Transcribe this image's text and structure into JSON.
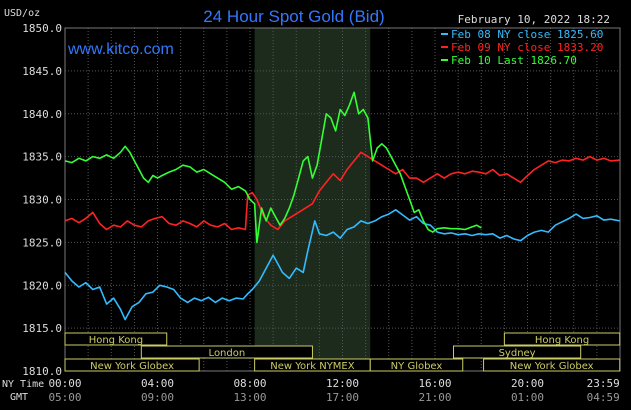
{
  "header": {
    "y_unit": "USD/oz",
    "title": "24 Hour Spot Gold (Bid)",
    "timestamp": "February 10, 2022 18:22",
    "site": "www.kitco.com"
  },
  "legend": [
    {
      "label": "Feb 08 NY close 1825.60",
      "color": "#33bbff"
    },
    {
      "label": "Feb 09 NY close 1833.20",
      "color": "#ff2222"
    },
    {
      "label": "Feb 10 Last 1826.70",
      "color": "#33ff33"
    }
  ],
  "axis_rows": {
    "ny_time_label": "NY Time",
    "gmt_label": "GMT",
    "ny_ticks": [
      "00:00",
      "04:00",
      "08:00",
      "12:00",
      "16:00",
      "20:00",
      "23:59"
    ],
    "gmt_ticks": [
      "05:00",
      "09:00",
      "13:00",
      "17:00",
      "21:00",
      "01:00",
      "04:59"
    ]
  },
  "sessions": {
    "row1": [
      {
        "label": "Hong Kong",
        "start": 0,
        "end": 4.4
      },
      {
        "label": "Hong Kong",
        "start": 19,
        "end": 23.99
      }
    ],
    "row2": [
      {
        "label": "London",
        "start": 3.3,
        "end": 10.7
      },
      {
        "label": "Sydney",
        "start": 16.8,
        "end": 22.3
      }
    ],
    "row3": [
      {
        "label": "New York Globex",
        "start": 0,
        "end": 5.8
      },
      {
        "label": "New York NYMEX",
        "start": 8.2,
        "end": 13.2
      },
      {
        "label": "NY Globex",
        "start": 13.2,
        "end": 17.2
      },
      {
        "label": "New York Globex",
        "start": 18.1,
        "end": 23.99
      }
    ]
  },
  "colors": {
    "background": "#000000",
    "grid": "#555555",
    "axis_text": "#dddddd",
    "title": "#3377ff",
    "nymex_band": "#1d2b1d",
    "session_border": "#cccc66"
  },
  "chart_data": {
    "type": "line",
    "xlim": [
      0,
      24
    ],
    "ylim": [
      1810,
      1850
    ],
    "y_ticks": [
      "1850.0",
      "1845.0",
      "1840.0",
      "1835.0",
      "1830.0",
      "1825.0",
      "1820.0",
      "1815.0",
      "1810.0"
    ],
    "grid": true,
    "legend_position": "top-right",
    "series": [
      {
        "name": "Feb 08 NY close 1825.60",
        "color": "#33bbff",
        "points": [
          [
            0,
            1821.5
          ],
          [
            0.3,
            1820.5
          ],
          [
            0.6,
            1819.8
          ],
          [
            0.9,
            1820.3
          ],
          [
            1.2,
            1819.5
          ],
          [
            1.5,
            1819.8
          ],
          [
            1.8,
            1817.8
          ],
          [
            2.1,
            1818.5
          ],
          [
            2.4,
            1817.2
          ],
          [
            2.6,
            1816.0
          ],
          [
            2.9,
            1817.5
          ],
          [
            3.2,
            1818.0
          ],
          [
            3.5,
            1819.0
          ],
          [
            3.8,
            1819.2
          ],
          [
            4.1,
            1820.0
          ],
          [
            4.4,
            1819.8
          ],
          [
            4.7,
            1819.5
          ],
          [
            5.0,
            1818.5
          ],
          [
            5.3,
            1818.0
          ],
          [
            5.6,
            1818.5
          ],
          [
            5.9,
            1818.2
          ],
          [
            6.2,
            1818.6
          ],
          [
            6.5,
            1818.0
          ],
          [
            6.8,
            1818.5
          ],
          [
            7.1,
            1818.2
          ],
          [
            7.4,
            1818.5
          ],
          [
            7.7,
            1818.4
          ],
          [
            7.9,
            1819.0
          ],
          [
            8.1,
            1819.5
          ],
          [
            8.4,
            1820.5
          ],
          [
            8.7,
            1822.0
          ],
          [
            9.0,
            1823.5
          ],
          [
            9.2,
            1822.5
          ],
          [
            9.4,
            1821.5
          ],
          [
            9.7,
            1820.8
          ],
          [
            10.0,
            1822.0
          ],
          [
            10.3,
            1821.5
          ],
          [
            10.5,
            1824.0
          ],
          [
            10.8,
            1827.5
          ],
          [
            11.0,
            1826.0
          ],
          [
            11.3,
            1825.8
          ],
          [
            11.6,
            1826.2
          ],
          [
            11.9,
            1825.5
          ],
          [
            12.2,
            1826.5
          ],
          [
            12.5,
            1826.8
          ],
          [
            12.8,
            1827.5
          ],
          [
            13.1,
            1827.2
          ],
          [
            13.4,
            1827.5
          ],
          [
            13.7,
            1828.0
          ],
          [
            14.0,
            1828.3
          ],
          [
            14.3,
            1828.8
          ],
          [
            14.6,
            1828.2
          ],
          [
            14.9,
            1827.6
          ],
          [
            15.2,
            1828.0
          ],
          [
            15.5,
            1827.2
          ],
          [
            15.8,
            1827.0
          ],
          [
            16.1,
            1826.2
          ],
          [
            16.4,
            1826.0
          ],
          [
            16.7,
            1826.1
          ],
          [
            17.0,
            1825.9
          ],
          [
            17.3,
            1826.0
          ],
          [
            17.6,
            1825.8
          ],
          [
            17.9,
            1826.0
          ],
          [
            18.2,
            1825.9
          ],
          [
            18.5,
            1826.0
          ],
          [
            18.8,
            1825.5
          ],
          [
            19.1,
            1825.8
          ],
          [
            19.4,
            1825.4
          ],
          [
            19.7,
            1825.2
          ],
          [
            20.0,
            1825.8
          ],
          [
            20.3,
            1826.2
          ],
          [
            20.6,
            1826.4
          ],
          [
            20.9,
            1826.2
          ],
          [
            21.2,
            1827.0
          ],
          [
            21.5,
            1827.4
          ],
          [
            21.8,
            1827.8
          ],
          [
            22.1,
            1828.3
          ],
          [
            22.4,
            1827.8
          ],
          [
            22.7,
            1827.9
          ],
          [
            23.0,
            1828.1
          ],
          [
            23.3,
            1827.6
          ],
          [
            23.6,
            1827.7
          ],
          [
            23.99,
            1827.5
          ]
        ]
      },
      {
        "name": "Feb 09 NY close 1833.20",
        "color": "#ff2222",
        "points": [
          [
            0,
            1827.5
          ],
          [
            0.3,
            1827.8
          ],
          [
            0.6,
            1827.3
          ],
          [
            0.9,
            1827.8
          ],
          [
            1.2,
            1828.5
          ],
          [
            1.5,
            1827.2
          ],
          [
            1.8,
            1826.5
          ],
          [
            2.1,
            1827.0
          ],
          [
            2.4,
            1826.8
          ],
          [
            2.7,
            1827.5
          ],
          [
            3.0,
            1827.0
          ],
          [
            3.3,
            1826.8
          ],
          [
            3.6,
            1827.5
          ],
          [
            3.9,
            1827.8
          ],
          [
            4.2,
            1828.0
          ],
          [
            4.5,
            1827.2
          ],
          [
            4.8,
            1827.0
          ],
          [
            5.1,
            1827.5
          ],
          [
            5.4,
            1827.2
          ],
          [
            5.7,
            1826.8
          ],
          [
            6.0,
            1827.5
          ],
          [
            6.3,
            1827.0
          ],
          [
            6.6,
            1826.8
          ],
          [
            6.9,
            1827.2
          ],
          [
            7.2,
            1826.5
          ],
          [
            7.5,
            1826.7
          ],
          [
            7.8,
            1826.5
          ],
          [
            7.9,
            1830.5
          ],
          [
            8.1,
            1830.8
          ],
          [
            8.3,
            1830.0
          ],
          [
            8.6,
            1828.0
          ],
          [
            8.9,
            1827.0
          ],
          [
            9.2,
            1826.5
          ],
          [
            9.5,
            1827.5
          ],
          [
            9.8,
            1828.0
          ],
          [
            10.1,
            1828.5
          ],
          [
            10.4,
            1829.0
          ],
          [
            10.7,
            1829.5
          ],
          [
            11.0,
            1831.0
          ],
          [
            11.3,
            1832.0
          ],
          [
            11.6,
            1833.0
          ],
          [
            11.9,
            1832.2
          ],
          [
            12.2,
            1833.5
          ],
          [
            12.5,
            1834.5
          ],
          [
            12.8,
            1835.5
          ],
          [
            13.1,
            1835.0
          ],
          [
            13.4,
            1834.5
          ],
          [
            13.7,
            1834.0
          ],
          [
            14.0,
            1833.5
          ],
          [
            14.3,
            1833.0
          ],
          [
            14.6,
            1833.5
          ],
          [
            14.9,
            1832.5
          ],
          [
            15.2,
            1832.5
          ],
          [
            15.5,
            1832.0
          ],
          [
            15.8,
            1832.5
          ],
          [
            16.1,
            1833.0
          ],
          [
            16.4,
            1832.5
          ],
          [
            16.7,
            1833.0
          ],
          [
            17.0,
            1833.2
          ],
          [
            17.3,
            1833.0
          ],
          [
            17.6,
            1833.3
          ],
          [
            17.9,
            1833.2
          ],
          [
            18.2,
            1833.0
          ],
          [
            18.5,
            1833.5
          ],
          [
            18.8,
            1832.8
          ],
          [
            19.1,
            1833.0
          ],
          [
            19.4,
            1832.5
          ],
          [
            19.7,
            1832.0
          ],
          [
            20.0,
            1832.8
          ],
          [
            20.3,
            1833.5
          ],
          [
            20.6,
            1834.0
          ],
          [
            20.9,
            1834.5
          ],
          [
            21.2,
            1834.3
          ],
          [
            21.5,
            1834.6
          ],
          [
            21.8,
            1834.5
          ],
          [
            22.1,
            1834.8
          ],
          [
            22.4,
            1834.6
          ],
          [
            22.7,
            1835.0
          ],
          [
            23.0,
            1834.6
          ],
          [
            23.3,
            1834.8
          ],
          [
            23.6,
            1834.5
          ],
          [
            23.99,
            1834.6
          ]
        ]
      },
      {
        "name": "Feb 10 Last 1826.70",
        "color": "#33ff33",
        "points": [
          [
            0,
            1834.5
          ],
          [
            0.3,
            1834.3
          ],
          [
            0.6,
            1834.8
          ],
          [
            0.9,
            1834.5
          ],
          [
            1.2,
            1835.0
          ],
          [
            1.5,
            1834.8
          ],
          [
            1.8,
            1835.2
          ],
          [
            2.1,
            1834.8
          ],
          [
            2.4,
            1835.5
          ],
          [
            2.6,
            1836.2
          ],
          [
            2.8,
            1835.5
          ],
          [
            3.0,
            1834.5
          ],
          [
            3.2,
            1833.5
          ],
          [
            3.4,
            1832.5
          ],
          [
            3.6,
            1832.0
          ],
          [
            3.8,
            1832.8
          ],
          [
            4.0,
            1832.5
          ],
          [
            4.2,
            1832.8
          ],
          [
            4.5,
            1833.2
          ],
          [
            4.8,
            1833.5
          ],
          [
            5.1,
            1834.0
          ],
          [
            5.4,
            1833.8
          ],
          [
            5.7,
            1833.2
          ],
          [
            6.0,
            1833.5
          ],
          [
            6.3,
            1833.0
          ],
          [
            6.6,
            1832.5
          ],
          [
            6.9,
            1832.0
          ],
          [
            7.2,
            1831.2
          ],
          [
            7.5,
            1831.5
          ],
          [
            7.8,
            1831.0
          ],
          [
            8.0,
            1830.0
          ],
          [
            8.2,
            1829.5
          ],
          [
            8.3,
            1825.0
          ],
          [
            8.5,
            1829.0
          ],
          [
            8.7,
            1827.5
          ],
          [
            8.9,
            1829.0
          ],
          [
            9.1,
            1828.0
          ],
          [
            9.3,
            1827.0
          ],
          [
            9.5,
            1827.8
          ],
          [
            9.7,
            1829.0
          ],
          [
            9.9,
            1830.5
          ],
          [
            10.1,
            1832.5
          ],
          [
            10.3,
            1834.5
          ],
          [
            10.5,
            1835.0
          ],
          [
            10.7,
            1832.5
          ],
          [
            10.9,
            1834.0
          ],
          [
            11.1,
            1837.0
          ],
          [
            11.3,
            1840.0
          ],
          [
            11.5,
            1839.5
          ],
          [
            11.7,
            1838.0
          ],
          [
            11.9,
            1840.5
          ],
          [
            12.1,
            1839.8
          ],
          [
            12.3,
            1841.0
          ],
          [
            12.5,
            1842.5
          ],
          [
            12.7,
            1840.0
          ],
          [
            12.9,
            1840.5
          ],
          [
            13.1,
            1839.5
          ],
          [
            13.3,
            1834.5
          ],
          [
            13.5,
            1836.0
          ],
          [
            13.7,
            1836.5
          ],
          [
            13.9,
            1836.0
          ],
          [
            14.1,
            1835.0
          ],
          [
            14.3,
            1834.0
          ],
          [
            14.5,
            1833.0
          ],
          [
            14.7,
            1831.5
          ],
          [
            14.9,
            1830.0
          ],
          [
            15.1,
            1828.5
          ],
          [
            15.3,
            1828.8
          ],
          [
            15.5,
            1827.5
          ],
          [
            15.7,
            1826.5
          ],
          [
            15.9,
            1826.2
          ],
          [
            16.1,
            1826.6
          ],
          [
            16.4,
            1826.7
          ],
          [
            16.7,
            1826.6
          ],
          [
            17.0,
            1826.6
          ],
          [
            17.3,
            1826.5
          ],
          [
            17.6,
            1826.8
          ],
          [
            17.8,
            1827.0
          ],
          [
            18.0,
            1826.7
          ]
        ]
      }
    ]
  }
}
